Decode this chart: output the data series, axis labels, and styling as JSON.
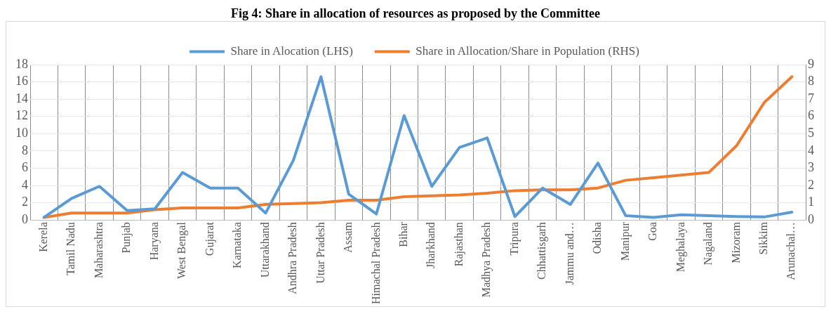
{
  "chart_data": {
    "type": "line",
    "title": "Fig 4: Share in allocation of resources as proposed by the Committee",
    "categories": [
      "Kerela",
      "Tamil Nadu",
      "Maharashtra",
      "Punjab",
      "Haryana",
      "West Bengal",
      "Gujarat",
      "Karnataka",
      "Uttarakhand",
      "Andhra Pradesh",
      "Uttar Pradesh",
      "Assam",
      "Himachal Pradesh",
      "Bihar",
      "Jharkhand",
      "Rajasthan",
      "Madhya Pradesh",
      "Tripura",
      "Chhattisgarh",
      "Jammu and…",
      "Odisha",
      "Manipur",
      "Goa",
      "Meghalaya",
      "Nagaland",
      "Mizoram",
      "Sikkim",
      "Arunachal…"
    ],
    "series": [
      {
        "name": "Share in Alocation (LHS)",
        "color": "#5b9bd5",
        "values": [
          0.3,
          2.5,
          3.9,
          1.1,
          1.3,
          5.5,
          3.7,
          3.7,
          0.8,
          6.9,
          16.6,
          3.0,
          0.7,
          12.1,
          3.9,
          8.4,
          9.5,
          0.4,
          3.7,
          1.8,
          6.6,
          0.5,
          0.3,
          0.6,
          0.5,
          0.4,
          0.35,
          0.9
        ]
      },
      {
        "name": "Share in Allocation/Share in Population (RHS)",
        "color": "#ed7d31",
        "axis": "y2",
        "values": [
          0.15,
          0.4,
          0.4,
          0.4,
          0.6,
          0.7,
          0.7,
          0.7,
          0.9,
          0.95,
          1.0,
          1.15,
          1.15,
          1.35,
          1.4,
          1.45,
          1.55,
          1.7,
          1.75,
          1.75,
          1.85,
          2.3,
          2.45,
          2.6,
          2.75,
          4.3,
          6.8,
          8.3
        ]
      }
    ],
    "ylim": [
      0,
      18
    ],
    "yticks": [
      0,
      2,
      4,
      6,
      8,
      10,
      12,
      14,
      16,
      18
    ],
    "y2lim": [
      0,
      9
    ],
    "y2ticks": [
      0,
      1,
      2,
      3,
      4,
      5,
      6,
      7,
      8,
      9
    ],
    "grid": true,
    "legend": "top",
    "marker": "none",
    "line_style": "solid"
  }
}
